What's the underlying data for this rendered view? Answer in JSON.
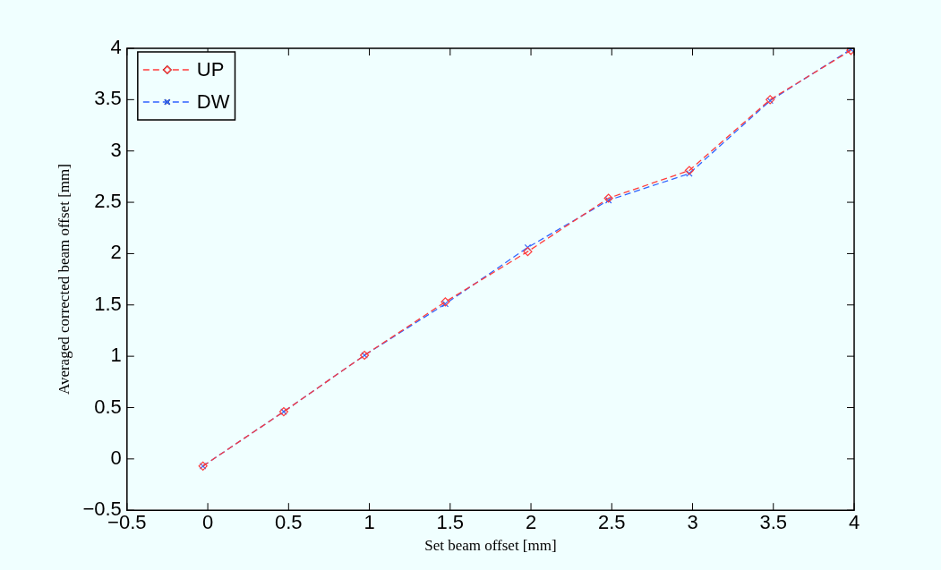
{
  "chart_data": {
    "type": "line",
    "xlabel": "Set beam offset [mm]",
    "ylabel": "Averaged corrected beam offset [mm]",
    "x": [
      -0.03,
      0.47,
      0.97,
      1.47,
      1.98,
      2.48,
      2.98,
      3.48,
      3.98
    ],
    "series": [
      {
        "name": "UP",
        "color": "#ff3b3b",
        "marker": "diamond",
        "values": [
          -0.07,
          0.46,
          1.01,
          1.53,
          2.02,
          2.54,
          2.81,
          3.5,
          3.98
        ]
      },
      {
        "name": "DW",
        "color": "#2f63ff",
        "marker": "cross",
        "values": [
          -0.07,
          0.46,
          1.01,
          1.51,
          2.06,
          2.52,
          2.78,
          3.49,
          3.99
        ]
      }
    ],
    "xlim": [
      -0.5,
      4
    ],
    "xticks": [
      -0.5,
      0,
      0.5,
      1,
      1.5,
      2,
      2.5,
      3,
      3.5,
      4
    ],
    "ylim": [
      -0.5,
      4
    ],
    "yticks": [
      -0.5,
      0,
      0.5,
      1,
      1.5,
      2,
      2.5,
      3,
      3.5,
      4
    ],
    "grid": false,
    "legend": "top left",
    "line_style": "dashed"
  }
}
